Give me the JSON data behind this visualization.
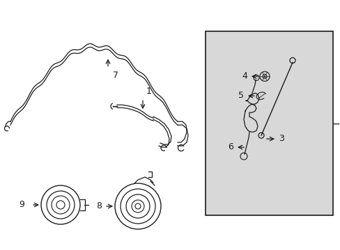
{
  "bg_color": "#ffffff",
  "line_color": "#1a1a1a",
  "box_fill": "#d8d8d8",
  "fig_width": 4.89,
  "fig_height": 3.6,
  "dpi": 100
}
